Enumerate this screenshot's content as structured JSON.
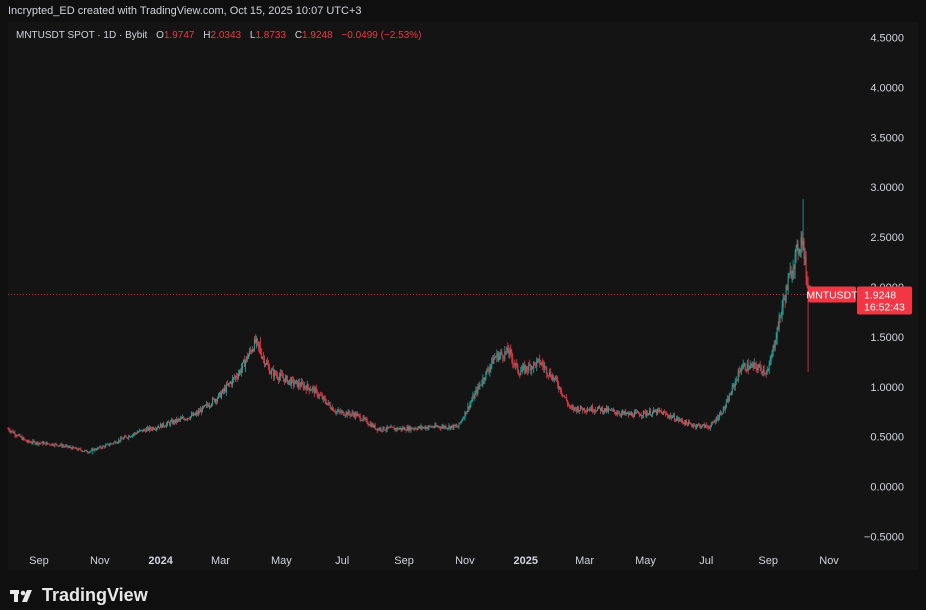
{
  "header": {
    "caption": "Incrypted_ED created with TradingView.com, Oct 15, 2025 10:07 UTC+3"
  },
  "legend": {
    "symbol": "MNTUSDT SPOT · 1D · Bybit",
    "open_label": "O",
    "open": "1.9747",
    "high_label": "H",
    "high": "2.0343",
    "low_label": "L",
    "low": "1.8733",
    "close_label": "C",
    "close": "1.9248",
    "change": "−0.0499 (−2.53%)"
  },
  "price_tag": {
    "symbol": "MNTUSDT",
    "price": "1.9248",
    "countdown": "16:52:43"
  },
  "brand": {
    "name": "TradingView"
  },
  "colors": {
    "up": "#26a69a",
    "down": "#f23645",
    "background": "#141414",
    "text": "#d1d4dc"
  },
  "chart_data": {
    "type": "candlestick",
    "symbol": "MNTUSDT",
    "ylim": [
      -0.5,
      4.5
    ],
    "y_ticks": [
      "4.5000",
      "4.0000",
      "3.5000",
      "3.0000",
      "2.5000",
      "2.0000",
      "1.5000",
      "1.0000",
      "0.5000",
      "0.0000",
      "−0.5000"
    ],
    "y_tick_values": [
      4.5,
      4.0,
      3.5,
      3.0,
      2.5,
      2.0,
      1.5,
      1.0,
      0.5,
      0.0,
      -0.5
    ],
    "x_range": [
      "2023-08-01",
      "2025-12-01"
    ],
    "x_ticks": [
      {
        "label": "Sep",
        "date": "2023-09-01",
        "bold": false
      },
      {
        "label": "Nov",
        "date": "2023-11-01",
        "bold": false
      },
      {
        "label": "2024",
        "date": "2024-01-01",
        "bold": true
      },
      {
        "label": "Mar",
        "date": "2024-03-01",
        "bold": false
      },
      {
        "label": "May",
        "date": "2024-05-01",
        "bold": false
      },
      {
        "label": "Jul",
        "date": "2024-07-01",
        "bold": false
      },
      {
        "label": "Sep",
        "date": "2024-09-01",
        "bold": false
      },
      {
        "label": "Nov",
        "date": "2024-11-01",
        "bold": false
      },
      {
        "label": "2025",
        "date": "2025-01-01",
        "bold": true
      },
      {
        "label": "Mar",
        "date": "2025-03-01",
        "bold": false
      },
      {
        "label": "May",
        "date": "2025-05-01",
        "bold": false
      },
      {
        "label": "Jul",
        "date": "2025-07-01",
        "bold": false
      },
      {
        "label": "Sep",
        "date": "2025-09-01",
        "bold": false
      },
      {
        "label": "Nov",
        "date": "2025-11-01",
        "bold": false
      }
    ],
    "last_price": 1.9248,
    "approx_close_path": [
      [
        "2023-08-01",
        0.58
      ],
      [
        "2023-08-20",
        0.45
      ],
      [
        "2023-09-20",
        0.42
      ],
      [
        "2023-10-20",
        0.35
      ],
      [
        "2023-11-10",
        0.42
      ],
      [
        "2023-12-10",
        0.55
      ],
      [
        "2024-01-05",
        0.62
      ],
      [
        "2024-02-05",
        0.72
      ],
      [
        "2024-03-01",
        0.92
      ],
      [
        "2024-03-20",
        1.15
      ],
      [
        "2024-04-05",
        1.45
      ],
      [
        "2024-04-20",
        1.15
      ],
      [
        "2024-05-10",
        1.05
      ],
      [
        "2024-06-01",
        0.98
      ],
      [
        "2024-06-25",
        0.75
      ],
      [
        "2024-07-15",
        0.72
      ],
      [
        "2024-08-05",
        0.58
      ],
      [
        "2024-09-01",
        0.58
      ],
      [
        "2024-10-01",
        0.6
      ],
      [
        "2024-10-25",
        0.6
      ],
      [
        "2024-11-15",
        1.0
      ],
      [
        "2024-12-01",
        1.3
      ],
      [
        "2024-12-15",
        1.35
      ],
      [
        "2024-12-25",
        1.15
      ],
      [
        "2025-01-15",
        1.25
      ],
      [
        "2025-02-01",
        1.05
      ],
      [
        "2025-02-15",
        0.78
      ],
      [
        "2025-03-15",
        0.78
      ],
      [
        "2025-04-15",
        0.72
      ],
      [
        "2025-05-15",
        0.75
      ],
      [
        "2025-06-15",
        0.62
      ],
      [
        "2025-07-05",
        0.6
      ],
      [
        "2025-07-20",
        0.8
      ],
      [
        "2025-08-05",
        1.2
      ],
      [
        "2025-08-20",
        1.2
      ],
      [
        "2025-09-01",
        1.15
      ],
      [
        "2025-09-15",
        1.8
      ],
      [
        "2025-09-25",
        2.2
      ],
      [
        "2025-10-05",
        2.5
      ],
      [
        "2025-10-10",
        2.05
      ],
      [
        "2025-10-15",
        1.9248
      ]
    ],
    "approx_highs": [
      [
        "2024-04-10",
        1.5
      ],
      [
        "2024-12-15",
        1.42
      ],
      [
        "2025-10-06",
        2.88
      ]
    ],
    "approx_lows": [
      [
        "2023-10-25",
        0.32
      ],
      [
        "2025-10-11",
        1.15
      ]
    ]
  }
}
